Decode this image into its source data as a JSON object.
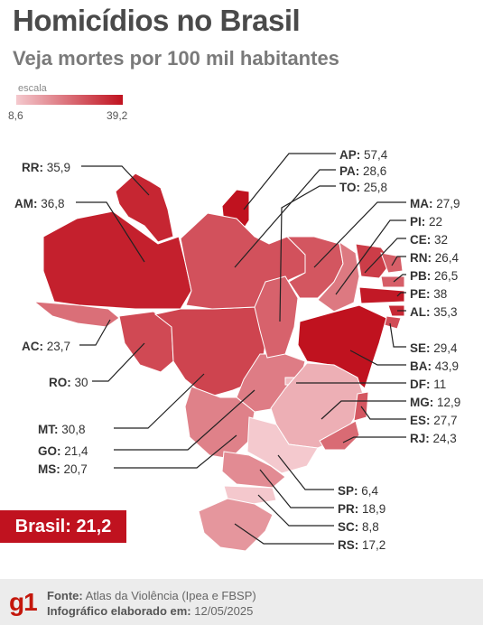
{
  "header": {
    "title": "Homicídios no Brasil",
    "subtitle": "Veja mortes por 100 mil habitantes"
  },
  "legend": {
    "label": "escala",
    "min_label": "8,6",
    "max_label": "39,2",
    "min_value": 8.6,
    "max_value": 39.2,
    "color_low": "#f4c9ce",
    "color_high": "#c0121f"
  },
  "national": {
    "label": "Brasil:",
    "value": "21,2"
  },
  "states": [
    {
      "code": "RR",
      "value": "35,9",
      "rate": 35.9
    },
    {
      "code": "AM",
      "value": "36,8",
      "rate": 36.8
    },
    {
      "code": "AC",
      "value": "23,7",
      "rate": 23.7
    },
    {
      "code": "RO",
      "value": "30",
      "rate": 30
    },
    {
      "code": "MT",
      "value": "30,8",
      "rate": 30.8
    },
    {
      "code": "GO",
      "value": "21,4",
      "rate": 21.4
    },
    {
      "code": "MS",
      "value": "20,7",
      "rate": 20.7
    },
    {
      "code": "AP",
      "value": "57,4",
      "rate": 57.4
    },
    {
      "code": "PA",
      "value": "28,6",
      "rate": 28.6
    },
    {
      "code": "TO",
      "value": "25,8",
      "rate": 25.8
    },
    {
      "code": "MA",
      "value": "27,9",
      "rate": 27.9
    },
    {
      "code": "PI",
      "value": "22",
      "rate": 22
    },
    {
      "code": "CE",
      "value": "32",
      "rate": 32
    },
    {
      "code": "RN",
      "value": "26,4",
      "rate": 26.4
    },
    {
      "code": "PB",
      "value": "26,5",
      "rate": 26.5
    },
    {
      "code": "PE",
      "value": "38",
      "rate": 38
    },
    {
      "code": "AL",
      "value": "35,3",
      "rate": 35.3
    },
    {
      "code": "SE",
      "value": "29,4",
      "rate": 29.4
    },
    {
      "code": "BA",
      "value": "43,9",
      "rate": 43.9
    },
    {
      "code": "DF",
      "value": "11",
      "rate": 11
    },
    {
      "code": "MG",
      "value": "12,9",
      "rate": 12.9
    },
    {
      "code": "ES",
      "value": "27,7",
      "rate": 27.7
    },
    {
      "code": "RJ",
      "value": "24,3",
      "rate": 24.3
    },
    {
      "code": "SP",
      "value": "6,4",
      "rate": 6.4
    },
    {
      "code": "PR",
      "value": "18,9",
      "rate": 18.9
    },
    {
      "code": "SC",
      "value": "8,8",
      "rate": 8.8
    },
    {
      "code": "RS",
      "value": "17,2",
      "rate": 17.2
    }
  ],
  "footer": {
    "logo": "g1",
    "source_label": "Fonte:",
    "source_text": "Atlas da Violência (Ipea e FBSP)",
    "credit_label": "Infográfico elaborado em:",
    "credit_date": "12/05/2025"
  }
}
